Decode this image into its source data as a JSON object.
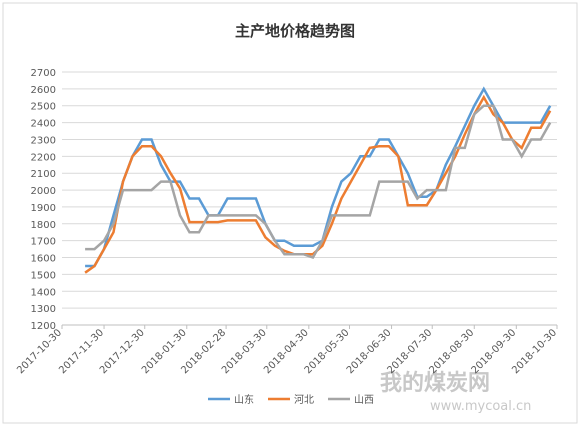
{
  "chart_data": {
    "type": "line",
    "title": "主产地价格趋势图",
    "x": [
      "2017-11-16",
      "2017-11-23",
      "2017-11-30",
      "2017-12-07",
      "2017-12-14",
      "2017-12-21",
      "2017-12-28",
      "2018-01-04",
      "2018-01-11",
      "2018-01-18",
      "2018-01-25",
      "2018-02-01",
      "2018-02-08",
      "2018-02-15",
      "2018-02-22",
      "2018-03-01",
      "2018-03-08",
      "2018-03-15",
      "2018-03-22",
      "2018-03-29",
      "2018-04-05",
      "2018-04-12",
      "2018-04-19",
      "2018-04-26",
      "2018-05-03",
      "2018-05-10",
      "2018-05-17",
      "2018-05-24",
      "2018-05-31",
      "2018-06-07",
      "2018-06-14",
      "2018-06-21",
      "2018-06-28",
      "2018-07-05",
      "2018-07-12",
      "2018-07-19",
      "2018-07-26",
      "2018-08-02",
      "2018-08-09",
      "2018-08-16",
      "2018-08-23",
      "2018-08-30",
      "2018-09-06",
      "2018-09-13",
      "2018-09-20",
      "2018-09-27",
      "2018-10-04",
      "2018-10-11",
      "2018-10-18",
      "2018-10-25"
    ],
    "series": [
      {
        "name": "山东",
        "color": "#5b9bd5",
        "values": [
          1550,
          1550,
          1650,
          1850,
          2050,
          2200,
          2300,
          2300,
          2150,
          2050,
          2050,
          1950,
          1950,
          1850,
          1850,
          1950,
          1950,
          1950,
          1950,
          1800,
          1700,
          1700,
          1670,
          1670,
          1670,
          1700,
          1900,
          2050,
          2100,
          2200,
          2200,
          2300,
          2300,
          2200,
          2100,
          1960,
          1960,
          2000,
          2150,
          2260,
          2380,
          2500,
          2600,
          2500,
          2400,
          2400,
          2400,
          2400,
          2400,
          2500
        ]
      },
      {
        "name": "河北",
        "color": "#ed7d31",
        "values": [
          1510,
          1550,
          1650,
          1750,
          2050,
          2200,
          2260,
          2260,
          2200,
          2100,
          2010,
          1810,
          1810,
          1810,
          1810,
          1820,
          1820,
          1820,
          1820,
          1720,
          1670,
          1640,
          1620,
          1620,
          1620,
          1670,
          1800,
          1950,
          2050,
          2150,
          2250,
          2260,
          2260,
          2200,
          1910,
          1910,
          1910,
          2000,
          2100,
          2200,
          2330,
          2450,
          2550,
          2450,
          2400,
          2300,
          2250,
          2370,
          2370,
          2470
        ]
      },
      {
        "name": "山西",
        "color": "#a5a5a5",
        "values": [
          1650,
          1650,
          1700,
          1800,
          2000,
          2000,
          2000,
          2000,
          2050,
          2050,
          1850,
          1750,
          1750,
          1850,
          1850,
          1850,
          1850,
          1850,
          1850,
          1800,
          1700,
          1620,
          1620,
          1620,
          1600,
          1700,
          1850,
          1850,
          1850,
          1850,
          1850,
          2050,
          2050,
          2050,
          2050,
          1950,
          2000,
          2000,
          2000,
          2250,
          2250,
          2450,
          2500,
          2500,
          2300,
          2300,
          2200,
          2300,
          2300,
          2400
        ]
      }
    ],
    "xlim": [
      "2017-10-30",
      "2018-10-30"
    ],
    "xticks": [
      "2017-10-30",
      "2017-11-30",
      "2017-12-30",
      "2018-01-30",
      "2018-02-28",
      "2018-03-30",
      "2018-04-30",
      "2018-05-30",
      "2018-06-30",
      "2018-07-30",
      "2018-08-30",
      "2018-09-30",
      "2018-10-30"
    ],
    "ylim": [
      1200,
      2700
    ],
    "yticks": [
      1200,
      1300,
      1400,
      1500,
      1600,
      1700,
      1800,
      1900,
      2000,
      2100,
      2200,
      2300,
      2400,
      2500,
      2600,
      2700
    ],
    "grid": true,
    "legend": "bottom",
    "watermark": [
      "我的煤炭网",
      "www.mycoal.cn"
    ]
  }
}
